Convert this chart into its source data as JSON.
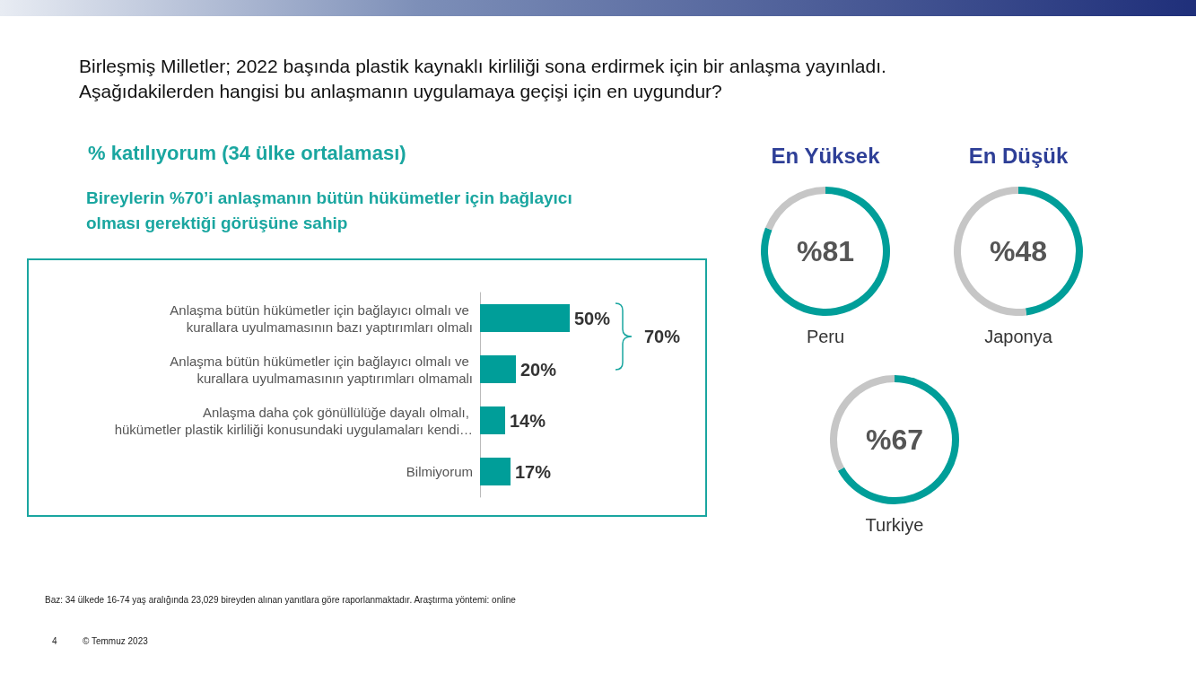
{
  "chart_data": [
    {
      "type": "bar",
      "orientation": "horizontal",
      "title": "Birleşmiş Milletler; 2022 başında plastik kaynaklı kirliliği sona erdirmek için bir anlaşma yayınladı. Aşağıdakilerden hangisi bu anlaşmanın uygulamaya geçişi için en uygundur?",
      "subtitle": "%  katılıyorum (34 ülke ortalaması)",
      "categories": [
        "Anlaşma bütün hükümetler için bağlayıcı olmalı ve kurallara uyulmamasının bazı yaptırımları olmalı",
        "Anlaşma bütün hükümetler için bağlayıcı olmalı ve kurallara uyulmamasının yaptırımları olmamalı",
        "Anlaşma daha çok gönüllülüğe dayalı olmalı, hükümetler plastik kirliliği konusundaki uygulamaları kendi…",
        "Bilmiyorum"
      ],
      "values": [
        50,
        20,
        14,
        17
      ],
      "color": "#009e99",
      "value_labels": [
        "50%",
        "20%",
        "14%",
        "17%"
      ],
      "annotations": [
        "Bireylerin %70’i anlaşmanın bütün hükümetler için bağlayıcı olması gerektiği görüşüne sahip",
        "70%",
        "Baz: 34 ülkede 16-74 yaş aralığında 23,029 bireyden alınan yanıtlara göre raporlanmaktadır. Araştırma yöntemi: online",
        "4",
        "© Temmuz 2023"
      ]
    },
    {
      "type": "donut",
      "title": "En Yüksek",
      "xlabel": "Peru",
      "categories": [
        null,
        null
      ],
      "values": [
        81,
        19
      ],
      "colors": [
        "#009e99",
        "#c6c6c6"
      ],
      "value_labels": [
        "%81",
        null
      ]
    },
    {
      "type": "donut",
      "title": "En Düşük",
      "xlabel": "Japonya",
      "categories": [
        null,
        null
      ],
      "values": [
        48,
        52
      ],
      "colors": [
        "#009e99",
        "#c6c6c6"
      ],
      "value_labels": [
        "%48",
        null
      ]
    },
    {
      "type": "donut",
      "xlabel": "Turkiye",
      "categories": [
        null,
        null
      ],
      "values": [
        67,
        33
      ],
      "colors": [
        "#009e99",
        "#c6c6c6"
      ],
      "value_labels": [
        "%67",
        null
      ]
    }
  ]
}
